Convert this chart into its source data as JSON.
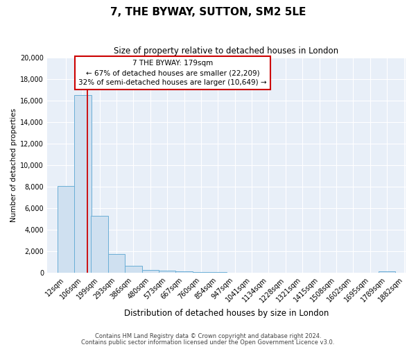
{
  "title": "7, THE BYWAY, SUTTON, SM2 5LE",
  "subtitle": "Size of property relative to detached houses in London",
  "xlabel": "Distribution of detached houses by size in London",
  "ylabel": "Number of detached properties",
  "bar_color": "#cfe0f0",
  "bar_edge_color": "#6aaed6",
  "background_color": "#e8eff8",
  "grid_color": "#ffffff",
  "red_line_x": 179,
  "bins_left": [
    12,
    106,
    199,
    293,
    386,
    480,
    573,
    667,
    760,
    854,
    947,
    1041,
    1134,
    1228,
    1321,
    1415,
    1508,
    1602,
    1695,
    1789
  ],
  "bin_width": 94,
  "bin_labels": [
    "12sqm",
    "106sqm",
    "199sqm",
    "293sqm",
    "386sqm",
    "480sqm",
    "573sqm",
    "667sqm",
    "760sqm",
    "854sqm",
    "947sqm",
    "1041sqm",
    "1134sqm",
    "1228sqm",
    "1321sqm",
    "1415sqm",
    "1508sqm",
    "1602sqm",
    "1695sqm",
    "1789sqm",
    "1882sqm"
  ],
  "bar_heights": [
    8100,
    16500,
    5300,
    1800,
    700,
    300,
    200,
    150,
    100,
    100,
    0,
    0,
    0,
    0,
    0,
    0,
    0,
    0,
    0,
    150
  ],
  "ylim": [
    0,
    20000
  ],
  "yticks": [
    0,
    2000,
    4000,
    6000,
    8000,
    10000,
    12000,
    14000,
    16000,
    18000,
    20000
  ],
  "annotation_text": "7 THE BYWAY: 179sqm\n← 67% of detached houses are smaller (22,209)\n32% of semi-detached houses are larger (10,649) →",
  "box_color": "#ffffff",
  "box_edge_color": "#cc0000",
  "red_line_color": "#cc0000",
  "footer_line1": "Contains HM Land Registry data © Crown copyright and database right 2024.",
  "footer_line2": "Contains public sector information licensed under the Open Government Licence v3.0."
}
